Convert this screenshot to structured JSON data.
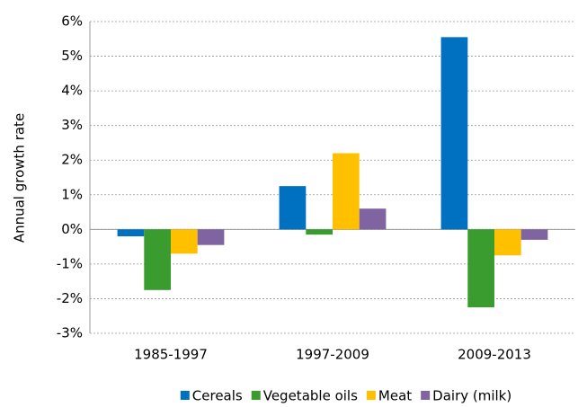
{
  "chart_data": {
    "type": "bar",
    "y_label": "Annual growth rate",
    "categories": [
      "1985-1997",
      "1997-2009",
      "2009-2013"
    ],
    "series": [
      {
        "name": "Cereals",
        "color": "#0070c0",
        "values": [
          -0.2,
          1.25,
          5.55
        ]
      },
      {
        "name": "Vegetable oils",
        "color": "#3a9c2e",
        "values": [
          -1.75,
          -0.15,
          -2.25
        ]
      },
      {
        "name": "Meat",
        "color": "#ffc000",
        "values": [
          -0.7,
          2.2,
          -0.75
        ]
      },
      {
        "name": "Dairy (milk)",
        "color": "#8064a2",
        "values": [
          -0.45,
          0.6,
          -0.3
        ]
      }
    ],
    "ylim": [
      -3,
      6
    ],
    "yticks": [
      {
        "value": -3,
        "label": "-3%"
      },
      {
        "value": -2,
        "label": "-2%"
      },
      {
        "value": -1,
        "label": "-1%"
      },
      {
        "value": 0,
        "label": "0%"
      },
      {
        "value": 1,
        "label": "1%"
      },
      {
        "value": 2,
        "label": "2%"
      },
      {
        "value": 3,
        "label": "3%"
      },
      {
        "value": 4,
        "label": "4%"
      },
      {
        "value": 5,
        "label": "5%"
      },
      {
        "value": 6,
        "label": "6%"
      }
    ],
    "grid": true,
    "legend": "bottom"
  }
}
